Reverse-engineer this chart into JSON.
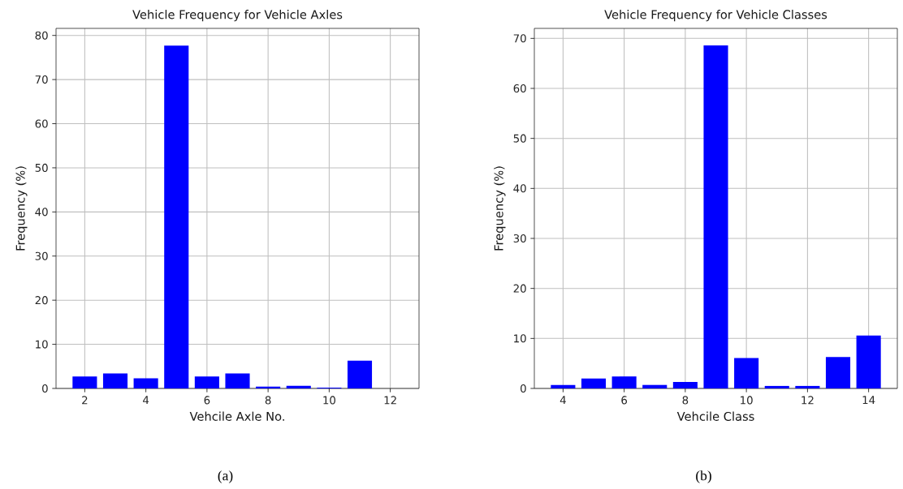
{
  "chart_data": [
    {
      "type": "bar",
      "title": "Vehicle Frequency for Vehicle Axles",
      "xlabel": "Vehcile Axle No.",
      "ylabel": "Frequency (%)",
      "x": [
        2,
        3,
        4,
        5,
        6,
        7,
        8,
        9,
        10,
        11,
        12
      ],
      "values": [
        2.7,
        3.4,
        2.3,
        77.7,
        2.7,
        3.4,
        0.4,
        0.6,
        0.2,
        6.3,
        0
      ],
      "color": "#0000ff",
      "xlim": [
        1.06,
        12.94
      ],
      "ylim": [
        0,
        81.6
      ],
      "xticks": [
        2,
        4,
        6,
        8,
        10,
        12
      ],
      "yticks": [
        0,
        10,
        20,
        30,
        40,
        50,
        60,
        70,
        80
      ],
      "grid": true,
      "annotations": [
        "(a)"
      ]
    },
    {
      "type": "bar",
      "title": "Vehicle Frequency for Vehicle Classes",
      "xlabel": "Vehcile Class",
      "ylabel": "Frequency (%)",
      "x": [
        4,
        5,
        6,
        7,
        8,
        9,
        10,
        11,
        12,
        13,
        14
      ],
      "values": [
        0.7,
        2.0,
        2.4,
        0.7,
        1.3,
        68.6,
        6.1,
        0.5,
        0.5,
        6.3,
        10.6
      ],
      "color": "#0000ff",
      "xlim": [
        3.06,
        14.94
      ],
      "ylim": [
        0,
        72.0
      ],
      "xticks": [
        4,
        6,
        8,
        10,
        12,
        14
      ],
      "yticks": [
        0,
        10,
        20,
        30,
        40,
        50,
        60,
        70
      ],
      "grid": true,
      "annotations": [
        "(b)"
      ]
    }
  ]
}
